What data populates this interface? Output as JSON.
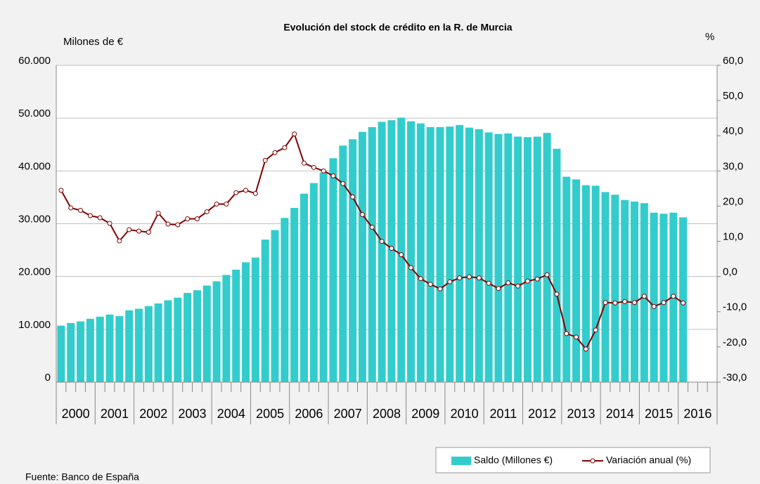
{
  "chart_data": {
    "type": "bar_line",
    "title": "Evolución del stock de crédito en la R. de Murcia",
    "y_label": "Milones de €",
    "y2_label": "%",
    "source": "Fuente: Banco de España",
    "year_labels": [
      "2000",
      "2001",
      "2002",
      "2003",
      "2004",
      "2005",
      "2006",
      "2007",
      "2008",
      "2009",
      "2010",
      "2011",
      "2012",
      "2013",
      "2014",
      "2015",
      "2016"
    ],
    "categories": [
      null,
      null,
      null,
      null,
      null,
      null,
      null,
      null,
      null,
      null,
      null,
      null,
      null,
      null,
      null,
      null,
      null,
      null,
      null,
      null,
      null,
      null,
      null,
      null,
      null,
      null,
      null,
      null,
      null,
      null,
      null,
      null,
      null,
      null,
      null,
      null,
      null,
      null,
      null,
      null,
      null,
      null,
      null,
      null,
      null,
      null,
      null,
      null,
      null,
      null,
      null,
      null,
      null,
      null,
      null,
      null,
      null,
      null,
      null,
      null,
      null,
      null,
      null,
      null,
      null,
      null,
      null,
      null
    ],
    "series": [
      {
        "name": "Saldo (Millones €)",
        "color": "#33cccc",
        "type": "bar",
        "values": [
          10700,
          11200,
          11500,
          12000,
          12400,
          12800,
          12500,
          13600,
          13900,
          14400,
          14900,
          15500,
          16000,
          16900,
          17400,
          18300,
          19100,
          20300,
          21300,
          22700,
          23600,
          27000,
          28800,
          31100,
          33000,
          35700,
          37700,
          39700,
          42400,
          44800,
          46000,
          47400,
          48300,
          49300,
          49600,
          50100,
          49400,
          49000,
          48300,
          48300,
          48400,
          48700,
          48200,
          47900,
          47300,
          47000,
          47100,
          46500,
          46400,
          46500,
          47200,
          44200,
          38900,
          38400,
          37300,
          37200,
          36000,
          35500,
          34500,
          34200,
          33900,
          32100,
          31900,
          32100,
          31200,
          null,
          null,
          null
        ]
      },
      {
        "name": "Variación anual (%)",
        "color": "#800000",
        "type": "line",
        "axis": "y2",
        "values": [
          24.5,
          19.5,
          18.8,
          17.3,
          16.7,
          15.1,
          10.1,
          13.3,
          12.9,
          12.6,
          18.0,
          14.9,
          14.7,
          16.4,
          16.4,
          18.4,
          20.6,
          20.6,
          23.8,
          24.5,
          23.6,
          33.0,
          35.2,
          36.6,
          40.5,
          32.2,
          31.0,
          30.0,
          28.6,
          26.4,
          22.6,
          17.6,
          14.0,
          10.0,
          8.0,
          6.2,
          2.5,
          -0.6,
          -2.2,
          -3.5,
          -1.5,
          -0.4,
          -0.1,
          -0.4,
          -1.9,
          -3.4,
          -1.8,
          -2.7,
          -1.3,
          -0.7,
          0.5,
          -5.0,
          -16.2,
          -17.2,
          -20.6,
          -15.2,
          -7.4,
          -7.5,
          -7.1,
          -7.4,
          -5.6,
          -8.5,
          -7.4,
          -5.6,
          -7.5,
          null,
          null,
          null
        ]
      }
    ],
    "ylim": [
      0,
      60000
    ],
    "yticks": [
      0,
      {
        "value": 10000,
        "label": "10.000"
      },
      {
        "value": 20000,
        "label": "20.000"
      },
      {
        "value": 30000,
        "label": "30.000"
      },
      {
        "value": 40000,
        "label": "40.000"
      },
      {
        "value": 50000,
        "label": "50.000"
      },
      {
        "value": 60000,
        "label": "60.000"
      }
    ],
    "y2lim": [
      -30,
      60
    ],
    "y2ticks": [
      {
        "value": -30,
        "label": "-30,0"
      },
      {
        "value": -20,
        "label": "-20,0"
      },
      {
        "value": -10,
        "label": "-10,0"
      },
      {
        "value": 0,
        "label": "0,0"
      },
      {
        "value": 10,
        "label": "10,0"
      },
      {
        "value": 20,
        "label": "20,0"
      },
      {
        "value": 30,
        "label": "30,0"
      },
      {
        "value": 40,
        "label": "40,0"
      },
      {
        "value": 50,
        "label": "50,0"
      },
      {
        "value": 60,
        "label": "60,0"
      }
    ],
    "grid": true,
    "legend": "bottom-right"
  }
}
